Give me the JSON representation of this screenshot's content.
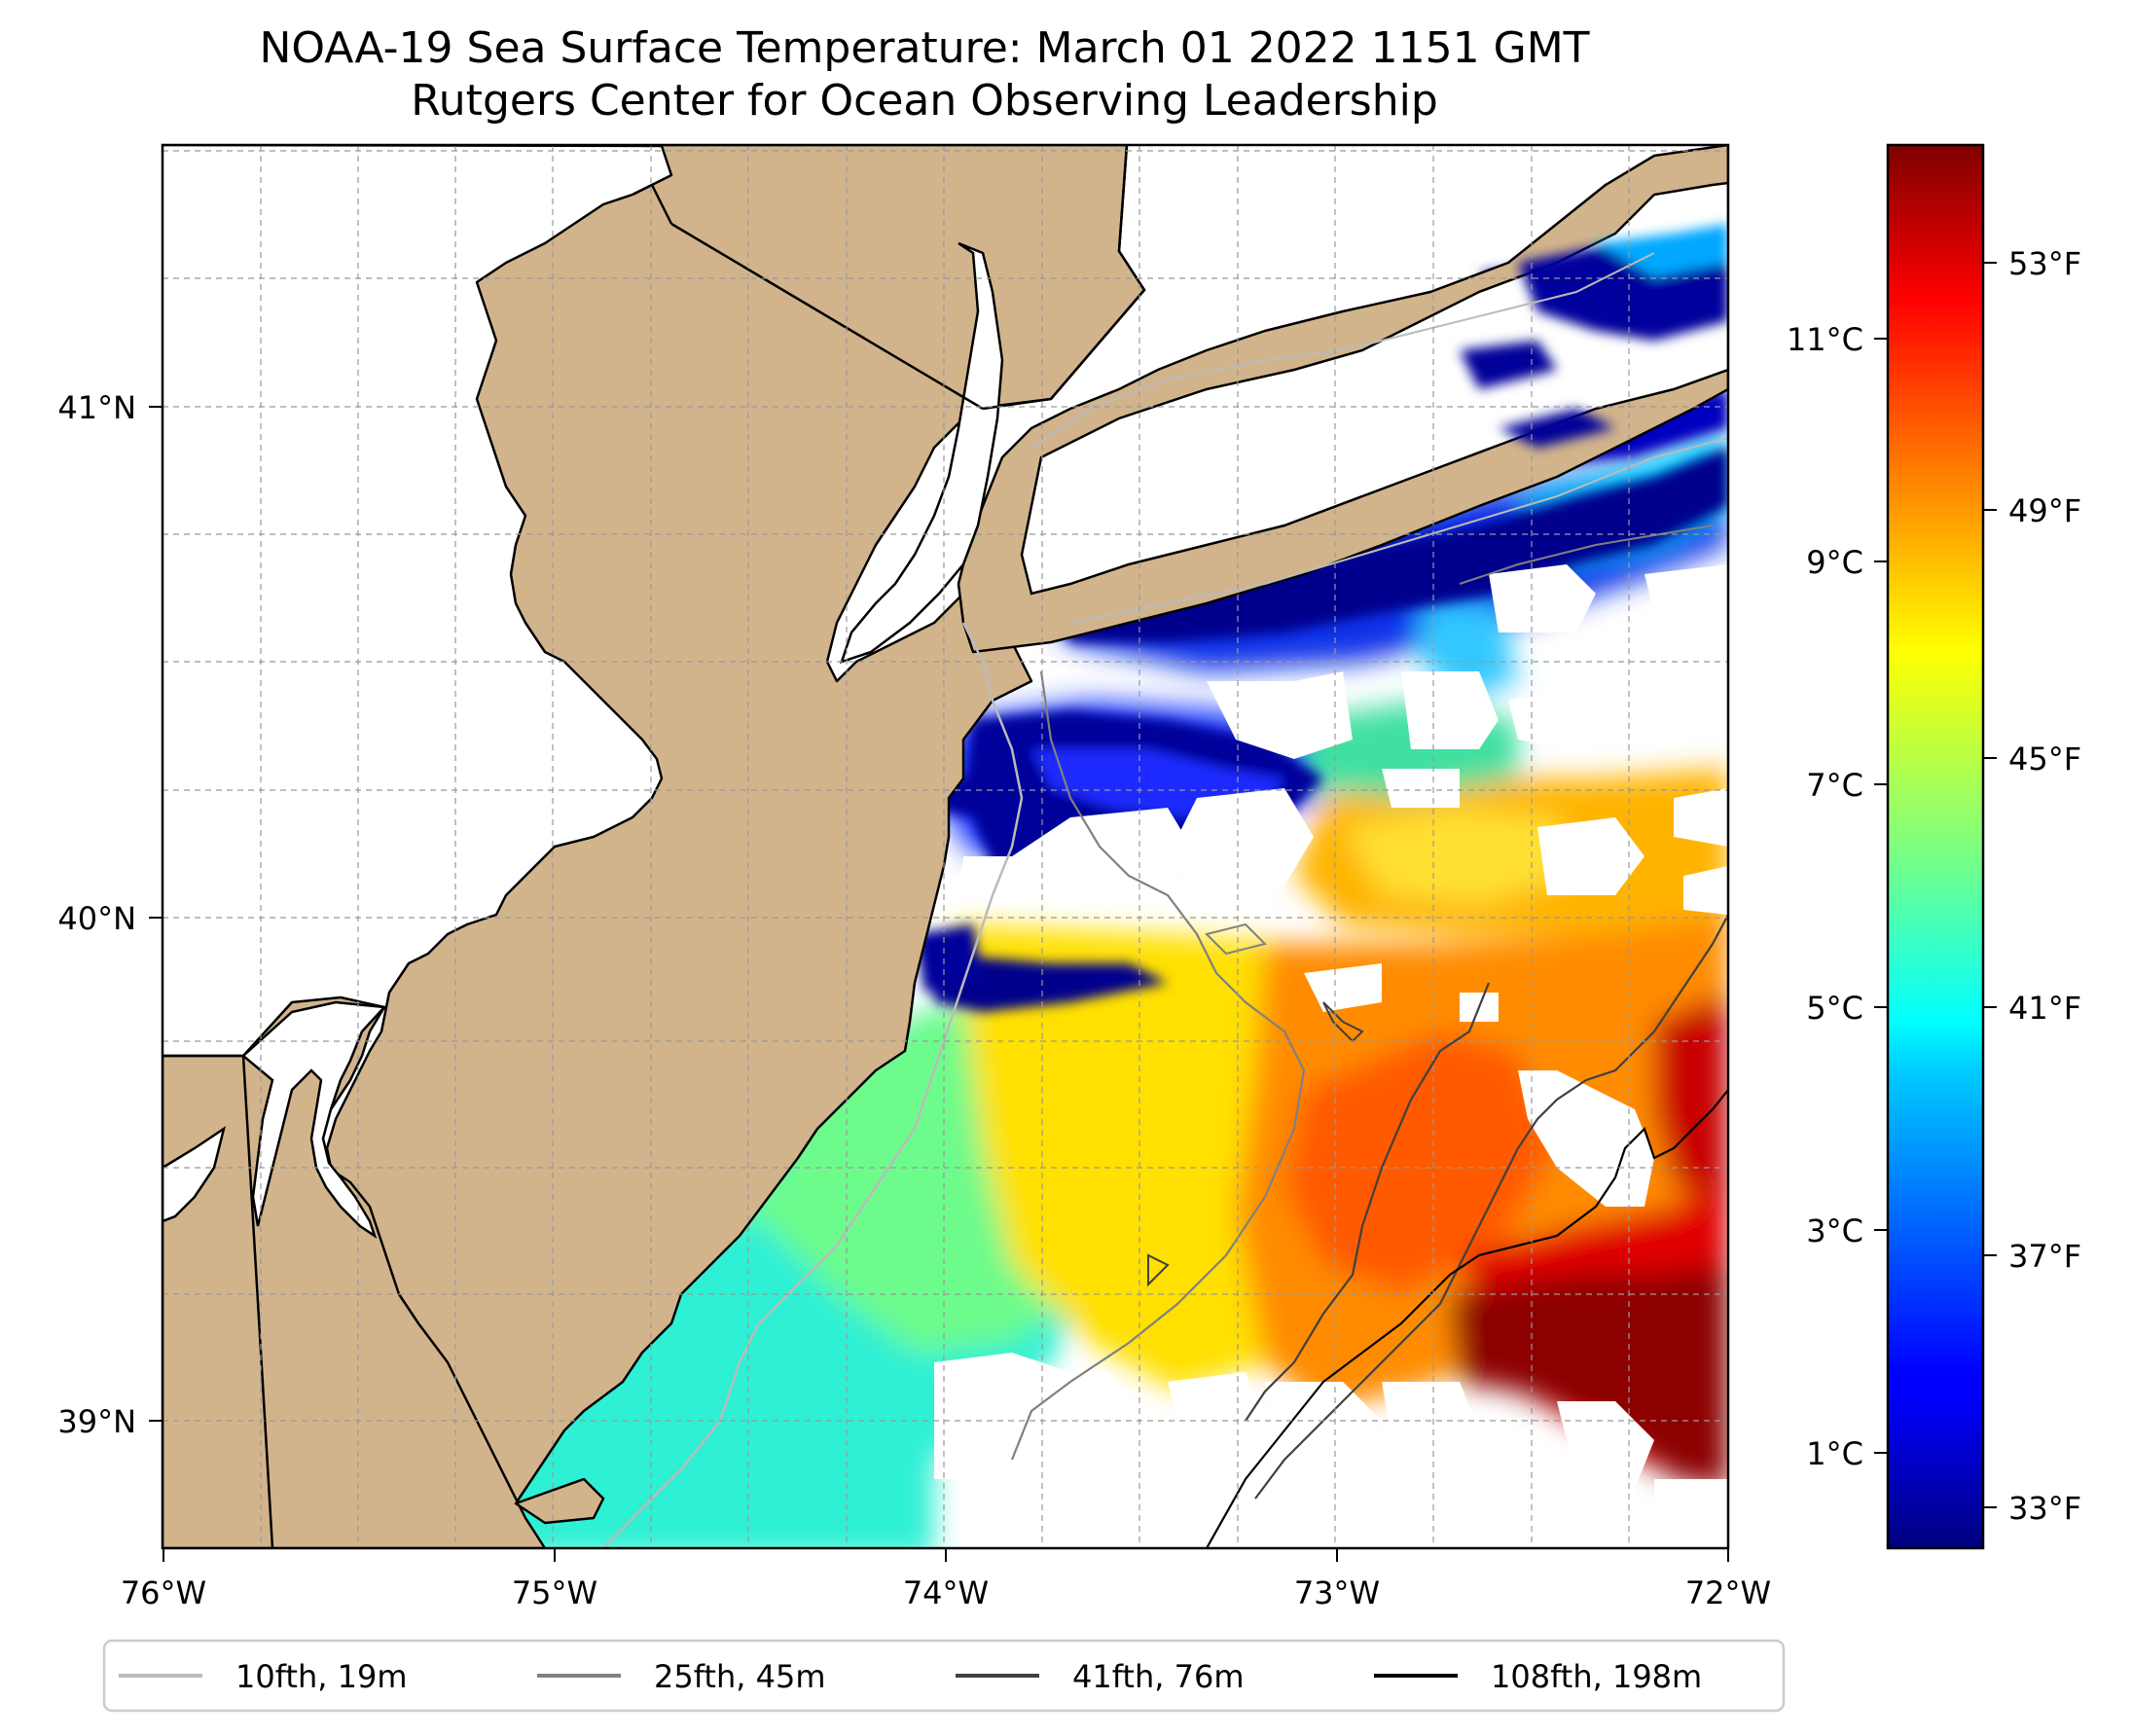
{
  "title": {
    "line1": "NOAA-19 Sea Surface Temperature: March 01 2022 1151 GMT",
    "line2": "Rutgers Center for Ocean Observing Leadership"
  },
  "map": {
    "lon_range": [
      -76,
      -72
    ],
    "lat_range": [
      38.7,
      41.52
    ],
    "x_ticks": [
      "76°W",
      "75°W",
      "74°W",
      "73°W",
      "72°W"
    ],
    "y_ticks": [
      "39°N",
      "40°N",
      "41°N"
    ],
    "land_color": "#d2b48c"
  },
  "colorbar": {
    "celsius_ticks": [
      "1°C",
      "3°C",
      "5°C",
      "7°C",
      "9°C",
      "11°C"
    ],
    "fahrenheit_ticks": [
      "33°F",
      "37°F",
      "41°F",
      "45°F",
      "49°F",
      "53°F"
    ],
    "colormap": "jet",
    "range_celsius": [
      0.2,
      12.8
    ]
  },
  "legend": [
    {
      "label": "10fth, 19m",
      "color": "#bbbbbb"
    },
    {
      "label": "25fth, 45m",
      "color": "#808080"
    },
    {
      "label": "41fth, 76m",
      "color": "#404040"
    },
    {
      "label": "108fth, 198m",
      "color": "#000000"
    }
  ]
}
